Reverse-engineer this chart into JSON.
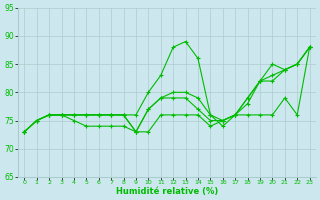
{
  "xlabel": "Humidité relative (%)",
  "ylabel": "",
  "xlim": [
    -0.5,
    23.5
  ],
  "ylim": [
    65,
    95
  ],
  "yticks": [
    65,
    70,
    75,
    80,
    85,
    90,
    95
  ],
  "xticks": [
    0,
    1,
    2,
    3,
    4,
    5,
    6,
    7,
    8,
    9,
    10,
    11,
    12,
    13,
    14,
    15,
    16,
    17,
    18,
    19,
    20,
    21,
    22,
    23
  ],
  "bg_color": "#cce8ee",
  "grid_color": "#aacccc",
  "line_color": "#00bb00",
  "series": [
    [
      73,
      75,
      76,
      76,
      76,
      76,
      76,
      76,
      76,
      76,
      80,
      83,
      88,
      89,
      86,
      76,
      74,
      76,
      79,
      82,
      85,
      84,
      85,
      88
    ],
    [
      73,
      75,
      76,
      76,
      76,
      76,
      76,
      76,
      76,
      73,
      77,
      79,
      80,
      80,
      79,
      76,
      75,
      76,
      79,
      82,
      83,
      84,
      85,
      88
    ],
    [
      73,
      75,
      76,
      76,
      76,
      76,
      76,
      76,
      76,
      73,
      77,
      79,
      79,
      79,
      77,
      75,
      75,
      76,
      78,
      82,
      82,
      84,
      85,
      88
    ],
    [
      73,
      75,
      76,
      76,
      75,
      74,
      74,
      74,
      74,
      73,
      73,
      76,
      76,
      76,
      76,
      74,
      75,
      76,
      76,
      76,
      76,
      79,
      76,
      88
    ]
  ]
}
